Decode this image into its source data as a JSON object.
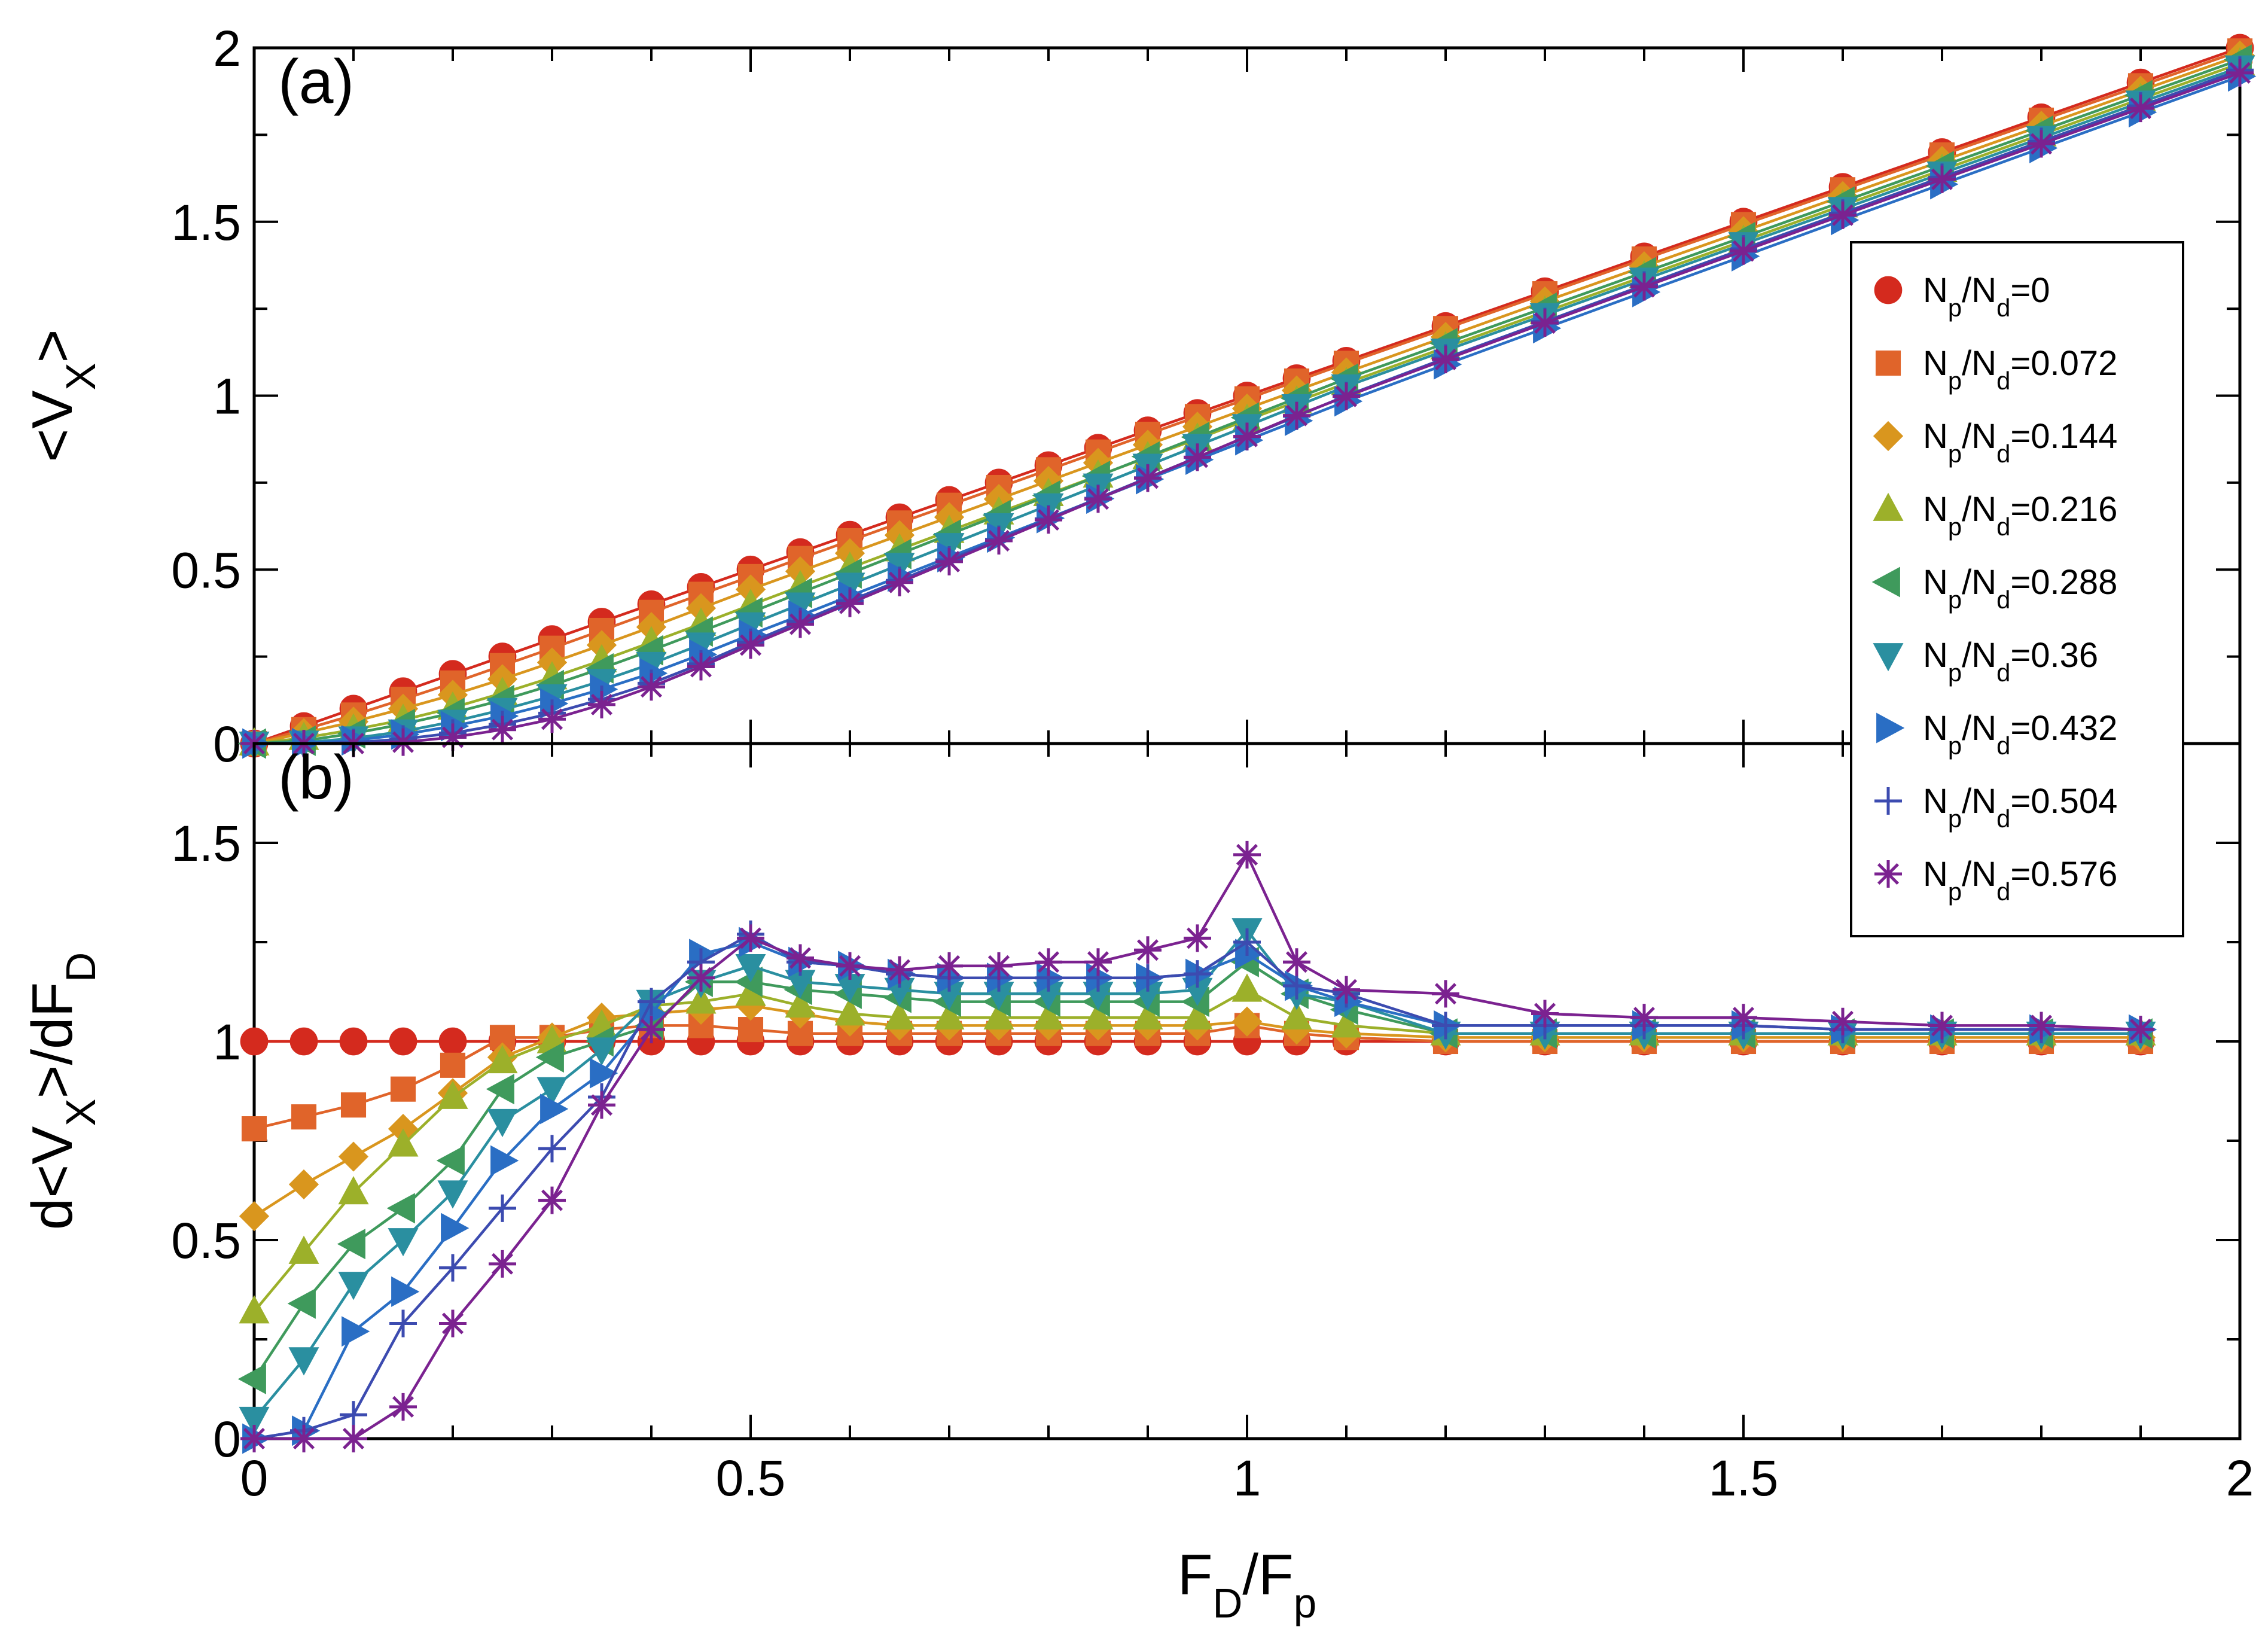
{
  "chart_data": {
    "type": "line",
    "x_axis": {
      "label": "F_D/F_p",
      "range": [
        0,
        2
      ],
      "tick_labels": [
        "0",
        "0.5",
        "1",
        "1.5",
        "2"
      ],
      "ticks": [
        0,
        0.5,
        1,
        1.5,
        2
      ]
    },
    "x_values": [
      0,
      0.05,
      0.1,
      0.15,
      0.2,
      0.25,
      0.3,
      0.35,
      0.4,
      0.45,
      0.5,
      0.55,
      0.6,
      0.65,
      0.7,
      0.75,
      0.8,
      0.85,
      0.9,
      0.95,
      1.0,
      1.05,
      1.1,
      1.2,
      1.3,
      1.4,
      1.5,
      1.6,
      1.7,
      1.8,
      1.9,
      2.0
    ],
    "legend": {
      "placement": "top-right",
      "entries": [
        {
          "label": "N_p/N_d=0",
          "color": "#d42a1e",
          "marker": "circle",
          "nratio": 0
        },
        {
          "label": "N_p/N_d=0.072",
          "color": "#e0642a",
          "marker": "square",
          "nratio": 0.072
        },
        {
          "label": "N_p/N_d=0.144",
          "color": "#d9961e",
          "marker": "diamond",
          "nratio": 0.144
        },
        {
          "label": "N_p/N_d=0.216",
          "color": "#9cb02a",
          "marker": "triangle-up",
          "nratio": 0.216
        },
        {
          "label": "N_p/N_d=0.288",
          "color": "#3f9a5c",
          "marker": "triangle-left",
          "nratio": 0.288
        },
        {
          "label": "N_p/N_d=0.36",
          "color": "#2a8fa0",
          "marker": "triangle-down",
          "nratio": 0.36
        },
        {
          "label": "N_p/N_d=0.432",
          "color": "#2a6ec4",
          "marker": "triangle-right",
          "nratio": 0.432
        },
        {
          "label": "N_p/N_d=0.504",
          "color": "#3c4bb0",
          "marker": "plus",
          "nratio": 0.504
        },
        {
          "label": "N_p/N_d=0.576",
          "color": "#7b2290",
          "marker": "star",
          "nratio": 0.576
        }
      ]
    },
    "panels": [
      {
        "id": "a",
        "label": "(a)",
        "ylabel": "<V_X>",
        "ylim": [
          0,
          2
        ],
        "y_ticks": [
          0,
          0.5,
          1,
          1.5,
          2
        ],
        "y_tick_labels": [
          "0",
          "0.5",
          "1",
          "1.5",
          "2"
        ],
        "series_x": [
          0,
          0.05,
          0.1,
          0.15,
          0.2,
          0.25,
          0.3,
          0.35,
          0.4,
          0.45,
          0.5,
          0.55,
          0.6,
          0.65,
          0.7,
          0.75,
          0.8,
          0.85,
          0.9,
          0.95,
          1.0,
          1.05,
          1.1,
          1.2,
          1.3,
          1.4,
          1.5,
          1.6,
          1.7,
          1.8,
          1.9,
          2.0
        ],
        "series": [
          {
            "name": "N_p/N_d=0",
            "values": [
              0,
              0.05,
              0.1,
              0.15,
              0.2,
              0.25,
              0.3,
              0.35,
              0.4,
              0.45,
              0.5,
              0.55,
              0.6,
              0.65,
              0.7,
              0.75,
              0.8,
              0.85,
              0.9,
              0.95,
              1.0,
              1.05,
              1.1,
              1.2,
              1.3,
              1.4,
              1.5,
              1.6,
              1.7,
              1.8,
              1.9,
              2.0
            ]
          },
          {
            "name": "N_p/N_d=0.072",
            "values": [
              0,
              0.04,
              0.082,
              0.127,
              0.174,
              0.224,
              0.274,
              0.325,
              0.377,
              0.429,
              0.48,
              0.532,
              0.583,
              0.634,
              0.685,
              0.736,
              0.787,
              0.838,
              0.889,
              0.94,
              0.991,
              1.042,
              1.093,
              1.193,
              1.293,
              1.393,
              1.492,
              1.592,
              1.692,
              1.792,
              1.891,
              1.991
            ]
          },
          {
            "name": "N_p/N_d=0.144",
            "values": [
              0,
              0.03,
              0.063,
              0.1,
              0.14,
              0.185,
              0.233,
              0.283,
              0.335,
              0.389,
              0.443,
              0.495,
              0.547,
              0.599,
              0.651,
              0.703,
              0.755,
              0.807,
              0.859,
              0.911,
              0.963,
              1.015,
              1.067,
              1.169,
              1.271,
              1.372,
              1.473,
              1.574,
              1.675,
              1.776,
              1.877,
              1.978
            ]
          },
          {
            "name": "N_p/N_d=0.216",
            "values": [
              0,
              0.016,
              0.04,
              0.068,
              0.103,
              0.145,
              0.19,
              0.239,
              0.291,
              0.344,
              0.398,
              0.452,
              0.505,
              0.558,
              0.611,
              0.664,
              0.717,
              0.77,
              0.823,
              0.876,
              0.93,
              0.983,
              1.036,
              1.139,
              1.241,
              1.343,
              1.445,
              1.547,
              1.649,
              1.751,
              1.853,
              1.955
            ]
          },
          {
            "name": "N_p/N_d=0.288",
            "values": [
              0,
              0.008,
              0.029,
              0.056,
              0.088,
              0.125,
              0.168,
              0.216,
              0.268,
              0.322,
              0.377,
              0.433,
              0.489,
              0.545,
              0.601,
              0.657,
              0.713,
              0.769,
              0.825,
              0.881,
              0.937,
              0.993,
              1.049,
              1.151,
              1.253,
              1.355,
              1.456,
              1.558,
              1.66,
              1.762,
              1.864,
              1.966
            ]
          },
          {
            "name": "N_p/N_d=0.36",
            "values": [
              0,
              0.003,
              0.015,
              0.035,
              0.063,
              0.097,
              0.136,
              0.18,
              0.229,
              0.285,
              0.343,
              0.4,
              0.457,
              0.514,
              0.571,
              0.628,
              0.685,
              0.742,
              0.799,
              0.856,
              0.913,
              0.97,
              1.027,
              1.13,
              1.232,
              1.334,
              1.436,
              1.537,
              1.639,
              1.741,
              1.843,
              1.944
            ]
          },
          {
            "name": "N_p/N_d=0.432",
            "values": [
              0,
              0.001,
              0.009,
              0.026,
              0.05,
              0.079,
              0.115,
              0.156,
              0.202,
              0.256,
              0.313,
              0.368,
              0.424,
              0.48,
              0.536,
              0.592,
              0.648,
              0.704,
              0.76,
              0.816,
              0.872,
              0.928,
              0.984,
              1.09,
              1.194,
              1.298,
              1.401,
              1.505,
              1.608,
              1.712,
              1.815,
              1.918
            ]
          },
          {
            "name": "N_p/N_d=0.504",
            "values": [
              0,
              0.0,
              0.003,
              0.013,
              0.03,
              0.055,
              0.087,
              0.127,
              0.173,
              0.229,
              0.291,
              0.351,
              0.41,
              0.469,
              0.528,
              0.587,
              0.646,
              0.705,
              0.764,
              0.823,
              0.882,
              0.941,
              1.0,
              1.108,
              1.213,
              1.318,
              1.422,
              1.525,
              1.628,
              1.731,
              1.833,
              1.936
            ]
          },
          {
            "name": "N_p/N_d=0.576",
            "values": [
              0,
              0.0,
              0.0,
              0.004,
              0.018,
              0.04,
              0.07,
              0.112,
              0.163,
              0.221,
              0.283,
              0.343,
              0.403,
              0.463,
              0.523,
              0.583,
              0.643,
              0.703,
              0.763,
              0.823,
              0.883,
              0.943,
              0.998,
              1.104,
              1.209,
              1.313,
              1.416,
              1.519,
              1.622,
              1.724,
              1.826,
              1.928
            ]
          }
        ]
      },
      {
        "id": "b",
        "label": "(b)",
        "ylabel": "d<V_X>/dF_D",
        "ylim": [
          0,
          1.75
        ],
        "y_ticks": [
          0,
          0.5,
          1,
          1.5
        ],
        "y_tick_labels": [
          "0",
          "0.5",
          "1",
          "1.5"
        ],
        "series_x": [
          0,
          0.05,
          0.1,
          0.15,
          0.2,
          0.25,
          0.3,
          0.35,
          0.4,
          0.45,
          0.5,
          0.55,
          0.6,
          0.65,
          0.7,
          0.75,
          0.8,
          0.85,
          0.9,
          0.95,
          1.0,
          1.05,
          1.1,
          1.2,
          1.3,
          1.4,
          1.5,
          1.6,
          1.7,
          1.8,
          1.9
        ],
        "series": [
          {
            "name": "N_p/N_d=0",
            "values": [
              1,
              1,
              1,
              1,
              1,
              1,
              1,
              1,
              1,
              1,
              1,
              1,
              1,
              1,
              1,
              1,
              1,
              1,
              1,
              1,
              1,
              1,
              1,
              1,
              1,
              1,
              1,
              1,
              1,
              1,
              1
            ]
          },
          {
            "name": "N_p/N_d=0.072",
            "values": [
              0.78,
              0.81,
              0.84,
              0.88,
              0.94,
              1.01,
              1.01,
              1.03,
              1.04,
              1.04,
              1.03,
              1.02,
              1.02,
              1.02,
              1.02,
              1.02,
              1.02,
              1.02,
              1.02,
              1.02,
              1.04,
              1.02,
              1.01,
              1.0,
              1.0,
              1.0,
              1.0,
              1.0,
              1.0,
              1.0,
              1.0
            ]
          },
          {
            "name": "N_p/N_d=0.144",
            "values": [
              0.56,
              0.64,
              0.71,
              0.78,
              0.87,
              0.96,
              1.01,
              1.06,
              1.07,
              1.08,
              1.09,
              1.07,
              1.05,
              1.04,
              1.04,
              1.04,
              1.04,
              1.04,
              1.04,
              1.04,
              1.05,
              1.03,
              1.02,
              1.01,
              1.01,
              1.01,
              1.01,
              1.01,
              1.01,
              1.01,
              1.01
            ]
          },
          {
            "name": "N_p/N_d=0.216",
            "values": [
              0.32,
              0.47,
              0.62,
              0.74,
              0.86,
              0.95,
              1.0,
              1.04,
              1.09,
              1.1,
              1.12,
              1.09,
              1.07,
              1.06,
              1.06,
              1.06,
              1.06,
              1.06,
              1.06,
              1.06,
              1.13,
              1.06,
              1.04,
              1.02,
              1.02,
              1.02,
              1.02,
              1.02,
              1.02,
              1.02,
              1.02
            ]
          },
          {
            "name": "N_p/N_d=0.288",
            "values": [
              0.15,
              0.34,
              0.49,
              0.58,
              0.7,
              0.88,
              0.96,
              1.0,
              1.04,
              1.15,
              1.15,
              1.13,
              1.12,
              1.11,
              1.1,
              1.1,
              1.1,
              1.1,
              1.1,
              1.1,
              1.2,
              1.12,
              1.08,
              1.02,
              1.02,
              1.02,
              1.02,
              1.02,
              1.02,
              1.02,
              1.02
            ]
          },
          {
            "name": "N_p/N_d=0.36",
            "values": [
              0.05,
              0.2,
              0.39,
              0.5,
              0.62,
              0.8,
              0.88,
              0.98,
              1.1,
              1.15,
              1.19,
              1.15,
              1.14,
              1.13,
              1.12,
              1.12,
              1.12,
              1.12,
              1.12,
              1.13,
              1.28,
              1.12,
              1.1,
              1.02,
              1.02,
              1.02,
              1.02,
              1.02,
              1.02,
              1.02,
              1.02
            ]
          },
          {
            "name": "N_p/N_d=0.432",
            "values": [
              0,
              0.02,
              0.27,
              0.37,
              0.53,
              0.7,
              0.83,
              0.92,
              1.07,
              1.22,
              1.25,
              1.2,
              1.19,
              1.17,
              1.16,
              1.16,
              1.16,
              1.16,
              1.16,
              1.17,
              1.22,
              1.14,
              1.1,
              1.04,
              1.04,
              1.04,
              1.04,
              1.03,
              1.03,
              1.03,
              1.03
            ]
          },
          {
            "name": "N_p/N_d=0.504",
            "values": [
              0,
              0.02,
              0.06,
              0.29,
              0.43,
              0.58,
              0.73,
              0.86,
              1.1,
              1.2,
              1.27,
              1.2,
              1.19,
              1.17,
              1.16,
              1.16,
              1.16,
              1.16,
              1.16,
              1.17,
              1.25,
              1.14,
              1.12,
              1.04,
              1.04,
              1.04,
              1.04,
              1.03,
              1.03,
              1.03,
              1.03
            ]
          },
          {
            "name": "N_p/N_d=0.576",
            "values": [
              0,
              0,
              0,
              0.08,
              0.29,
              0.44,
              0.6,
              0.84,
              1.03,
              1.16,
              1.26,
              1.21,
              1.19,
              1.18,
              1.19,
              1.19,
              1.2,
              1.2,
              1.23,
              1.26,
              1.47,
              1.2,
              1.13,
              1.12,
              1.07,
              1.06,
              1.06,
              1.05,
              1.04,
              1.04,
              1.03
            ]
          }
        ]
      }
    ]
  }
}
